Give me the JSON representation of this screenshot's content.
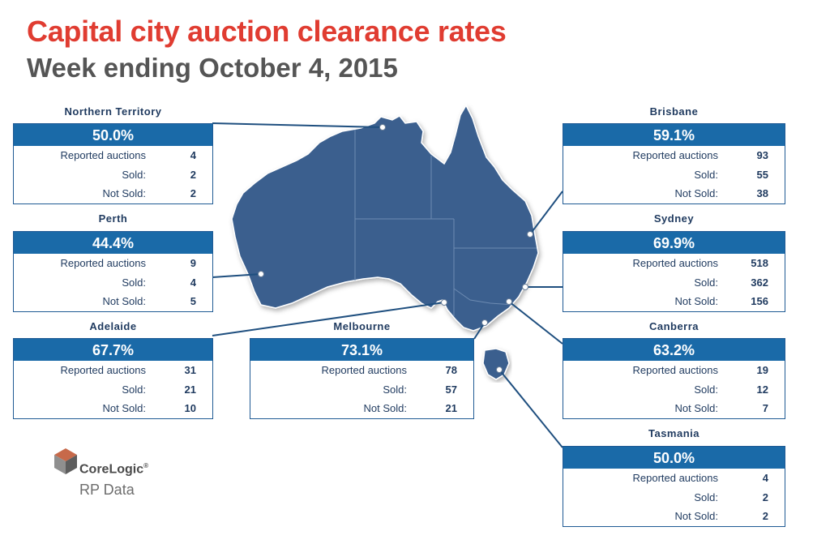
{
  "title": "Capital city auction clearance rates",
  "subtitle": "Week ending October 4, 2015",
  "labels": {
    "reported": "Reported auctions",
    "sold": "Sold:",
    "not_sold": "Not Sold:"
  },
  "regions": {
    "northern_territory": {
      "name": "Northern Territory",
      "rate": "50.0%",
      "reported": "4",
      "sold": "2",
      "not_sold": "2"
    },
    "perth": {
      "name": "Perth",
      "rate": "44.4%",
      "reported": "9",
      "sold": "4",
      "not_sold": "5"
    },
    "adelaide": {
      "name": "Adelaide",
      "rate": "67.7%",
      "reported": "31",
      "sold": "21",
      "not_sold": "10"
    },
    "melbourne": {
      "name": "Melbourne",
      "rate": "73.1%",
      "reported": "78",
      "sold": "57",
      "not_sold": "21"
    },
    "brisbane": {
      "name": "Brisbane",
      "rate": "59.1%",
      "reported": "93",
      "sold": "55",
      "not_sold": "38"
    },
    "sydney": {
      "name": "Sydney",
      "rate": "69.9%",
      "reported": "518",
      "sold": "362",
      "not_sold": "156"
    },
    "canberra": {
      "name": "Canberra",
      "rate": "63.2%",
      "reported": "19",
      "sold": "12",
      "not_sold": "7"
    },
    "tasmania": {
      "name": "Tasmania",
      "rate": "50.0%",
      "reported": "4",
      "sold": "2",
      "not_sold": "2"
    }
  },
  "logo": {
    "brand": "CoreLogic",
    "reg": "®",
    "sub": "RP Data"
  },
  "colors": {
    "title": "#e03c31",
    "map_fill": "#3a5f8e",
    "card_header": "#1a6aa8",
    "card_border": "#1f5a94"
  }
}
